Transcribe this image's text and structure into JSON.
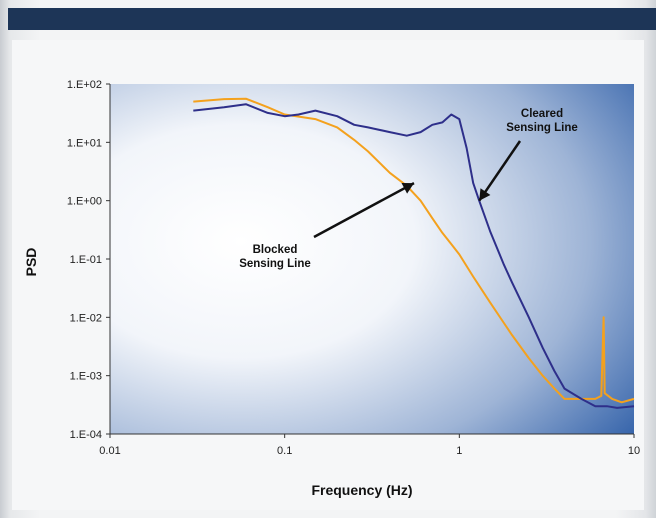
{
  "header": {
    "color": "#1d3557"
  },
  "chart_data": {
    "type": "line",
    "title": "",
    "xlabel": "Frequency (Hz)",
    "ylabel": "PSD",
    "xscale": "log",
    "yscale": "log",
    "xlim": [
      0.01,
      10
    ],
    "ylim": [
      0.0001,
      100
    ],
    "grid": false,
    "legend": "none",
    "x_ticks": [
      "0.01",
      "0.1",
      "1",
      "10"
    ],
    "y_ticks": [
      "1.E+02",
      "1.E+01",
      "1.E+00",
      "1.E-01",
      "1.E-02",
      "1.E-03",
      "1.E-04"
    ],
    "series": [
      {
        "color": "#f4a11d",
        "points": [
          [
            0.03,
            50
          ],
          [
            0.045,
            55
          ],
          [
            0.06,
            56
          ],
          [
            0.08,
            40
          ],
          [
            0.1,
            30
          ],
          [
            0.15,
            25
          ],
          [
            0.2,
            18
          ],
          [
            0.25,
            11
          ],
          [
            0.3,
            7
          ],
          [
            0.4,
            3
          ],
          [
            0.5,
            1.8
          ],
          [
            0.6,
            1.0
          ],
          [
            0.7,
            0.5
          ],
          [
            0.8,
            0.28
          ],
          [
            0.9,
            0.18
          ],
          [
            1.0,
            0.12
          ],
          [
            1.2,
            0.05
          ],
          [
            1.5,
            0.018
          ],
          [
            1.8,
            0.008
          ],
          [
            2.0,
            0.005
          ],
          [
            2.5,
            0.002
          ],
          [
            3.0,
            0.001
          ],
          [
            3.5,
            0.0006
          ],
          [
            4.0,
            0.0004
          ],
          [
            5.0,
            0.0004
          ],
          [
            6.0,
            0.0004
          ],
          [
            6.5,
            0.00045
          ],
          [
            6.7,
            0.01
          ],
          [
            6.8,
            0.0005
          ],
          [
            7.5,
            0.0004
          ],
          [
            8.5,
            0.00035
          ],
          [
            10,
            0.0004
          ]
        ]
      },
      {
        "color": "#2e2f8a",
        "points": [
          [
            0.03,
            35
          ],
          [
            0.045,
            40
          ],
          [
            0.06,
            45
          ],
          [
            0.08,
            32
          ],
          [
            0.1,
            28
          ],
          [
            0.12,
            30
          ],
          [
            0.15,
            35
          ],
          [
            0.2,
            28
          ],
          [
            0.25,
            20
          ],
          [
            0.3,
            18
          ],
          [
            0.4,
            15
          ],
          [
            0.5,
            13
          ],
          [
            0.6,
            15
          ],
          [
            0.7,
            20
          ],
          [
            0.8,
            22
          ],
          [
            0.9,
            30
          ],
          [
            1.0,
            25
          ],
          [
            1.1,
            8
          ],
          [
            1.2,
            2
          ],
          [
            1.3,
            1.0
          ],
          [
            1.5,
            0.3
          ],
          [
            1.8,
            0.08
          ],
          [
            2.0,
            0.04
          ],
          [
            2.5,
            0.01
          ],
          [
            3.0,
            0.003
          ],
          [
            3.5,
            0.0012
          ],
          [
            4.0,
            0.0006
          ],
          [
            5.0,
            0.0004
          ],
          [
            6.0,
            0.0003
          ],
          [
            7.0,
            0.0003
          ],
          [
            8.0,
            0.00028
          ],
          [
            10,
            0.0003
          ]
        ]
      }
    ],
    "annotations": [
      {
        "lines": [
          "Cleared",
          "Sensing Line"
        ],
        "arrow_to": [
          1.3,
          1.0
        ]
      },
      {
        "lines": [
          "Blocked",
          "Sensing Line"
        ],
        "arrow_to": [
          0.55,
          2.0
        ]
      }
    ]
  }
}
